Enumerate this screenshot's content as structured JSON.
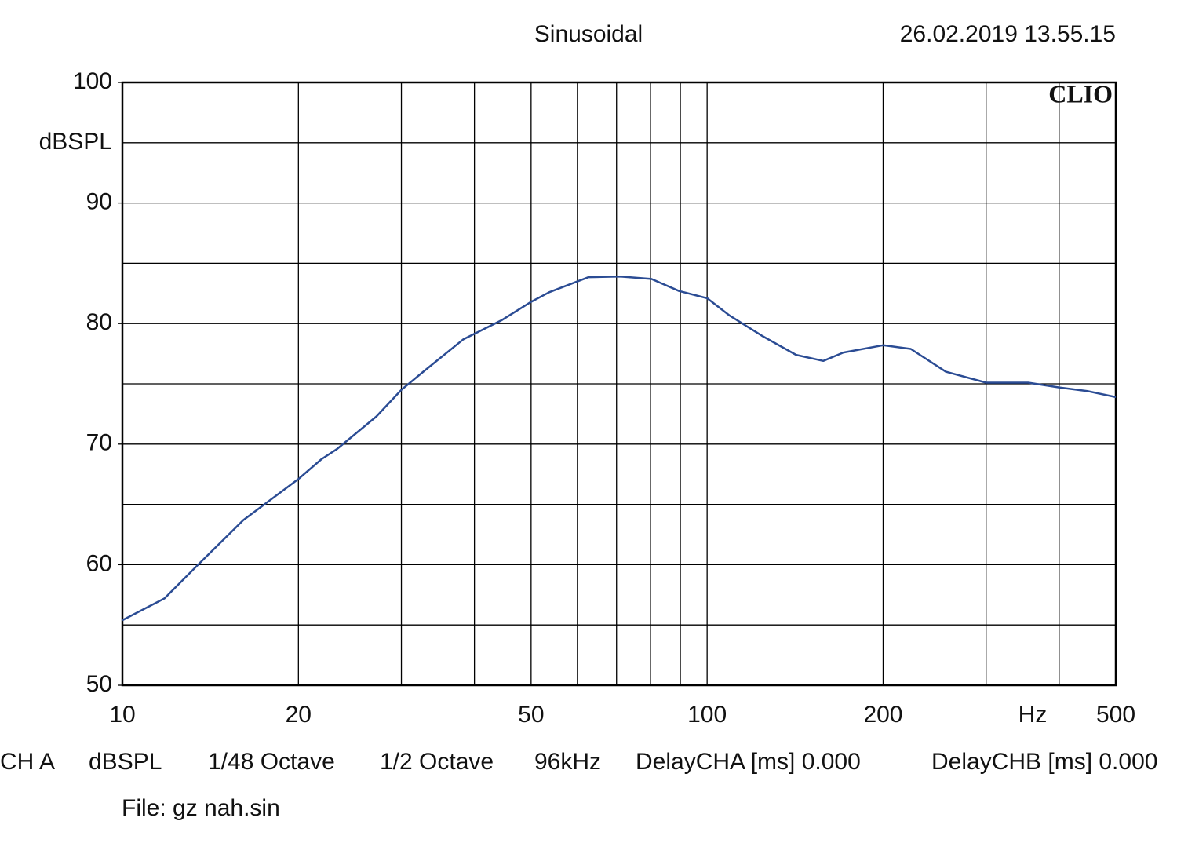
{
  "chart_data": {
    "type": "line",
    "title": "Sinusoidal",
    "timestamp": "26.02.2019 13.55.15",
    "brand": "CLIO",
    "x_label": "Hz",
    "y_label": "dBSPL",
    "x_scale": "log",
    "xlim": [
      10,
      500
    ],
    "ylim": [
      50,
      100
    ],
    "xticks": [
      10,
      20,
      50,
      100,
      200,
      500
    ],
    "xminor": [
      30,
      40,
      60,
      70,
      80,
      90,
      300,
      400
    ],
    "yticks": [
      50,
      60,
      70,
      80,
      90,
      100
    ],
    "yminor": [
      55,
      65,
      75,
      85,
      95
    ],
    "grid": true,
    "x": [
      10,
      11.8,
      13.8,
      16.1,
      20,
      21.9,
      23.3,
      27.2,
      30,
      32.7,
      38.3,
      44.6,
      50,
      53.7,
      62.7,
      71,
      80.3,
      89.5,
      100,
      109,
      124,
      142,
      158,
      171,
      200,
      223,
      256,
      300,
      354,
      400,
      447,
      500
    ],
    "series": [
      {
        "color": "#2b4c94",
        "values": [
          55.4,
          57.2,
          60.5,
          63.7,
          67.1,
          68.75,
          69.6,
          72.3,
          74.5,
          76.0,
          78.7,
          80.3,
          81.8,
          82.6,
          83.85,
          83.9,
          83.7,
          82.7,
          82.1,
          80.7,
          79.0,
          77.4,
          76.9,
          77.6,
          78.2,
          77.9,
          76.0,
          75.1,
          75.1,
          74.7,
          74.4,
          73.9
        ]
      }
    ],
    "footer": [
      "CH A",
      "dBSPL",
      "1/48 Octave",
      "1/2 Octave",
      "96kHz",
      "DelayCHA [ms] 0.000",
      "DelayCHB [ms] 0.000"
    ],
    "file": "File: gz nah.sin"
  }
}
